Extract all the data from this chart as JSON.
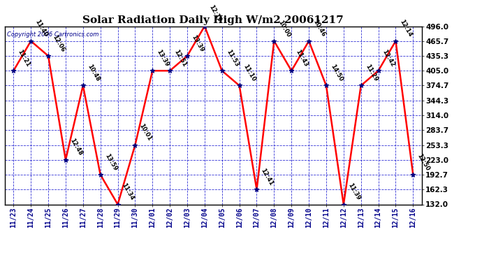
{
  "title": "Solar Radiation Daily High W/m2 20061217",
  "copyright": "Copyright 2006 Cartronics.com",
  "x_labels": [
    "11/23",
    "11/24",
    "11/25",
    "11/26",
    "11/27",
    "11/28",
    "11/29",
    "11/30",
    "12/01",
    "12/02",
    "12/03",
    "12/04",
    "12/05",
    "12/06",
    "12/07",
    "12/08",
    "12/09",
    "12/10",
    "12/11",
    "12/12",
    "12/13",
    "12/14",
    "12/15",
    "12/16"
  ],
  "y_values": [
    405.0,
    465.7,
    435.3,
    223.0,
    374.7,
    192.7,
    132.0,
    253.3,
    405.0,
    405.0,
    435.3,
    496.0,
    405.0,
    374.7,
    162.3,
    465.7,
    405.0,
    465.7,
    374.7,
    132.0,
    374.7,
    405.0,
    465.7,
    192.7
  ],
  "time_labels": [
    "11:21",
    "11:40",
    "12:06",
    "12:48",
    "10:48",
    "13:59",
    "11:34",
    "10:01",
    "13:39",
    "12:51",
    "13:39",
    "12:19",
    "11:53",
    "11:10",
    "12:41",
    "10:00",
    "11:43",
    "10:46",
    "14:50",
    "11:39",
    "11:29",
    "12:42",
    "12:14",
    "12:50"
  ],
  "y_ticks": [
    132.0,
    162.3,
    192.7,
    223.0,
    253.3,
    283.7,
    314.0,
    344.3,
    374.7,
    405.0,
    435.3,
    465.7,
    496.0
  ],
  "y_min": 132.0,
  "y_max": 496.0,
  "line_color": "red",
  "marker_color": "#000080",
  "grid_color": "#0000cc",
  "bg_color": "white",
  "title_color": "black",
  "copyright_color": "#00008B"
}
